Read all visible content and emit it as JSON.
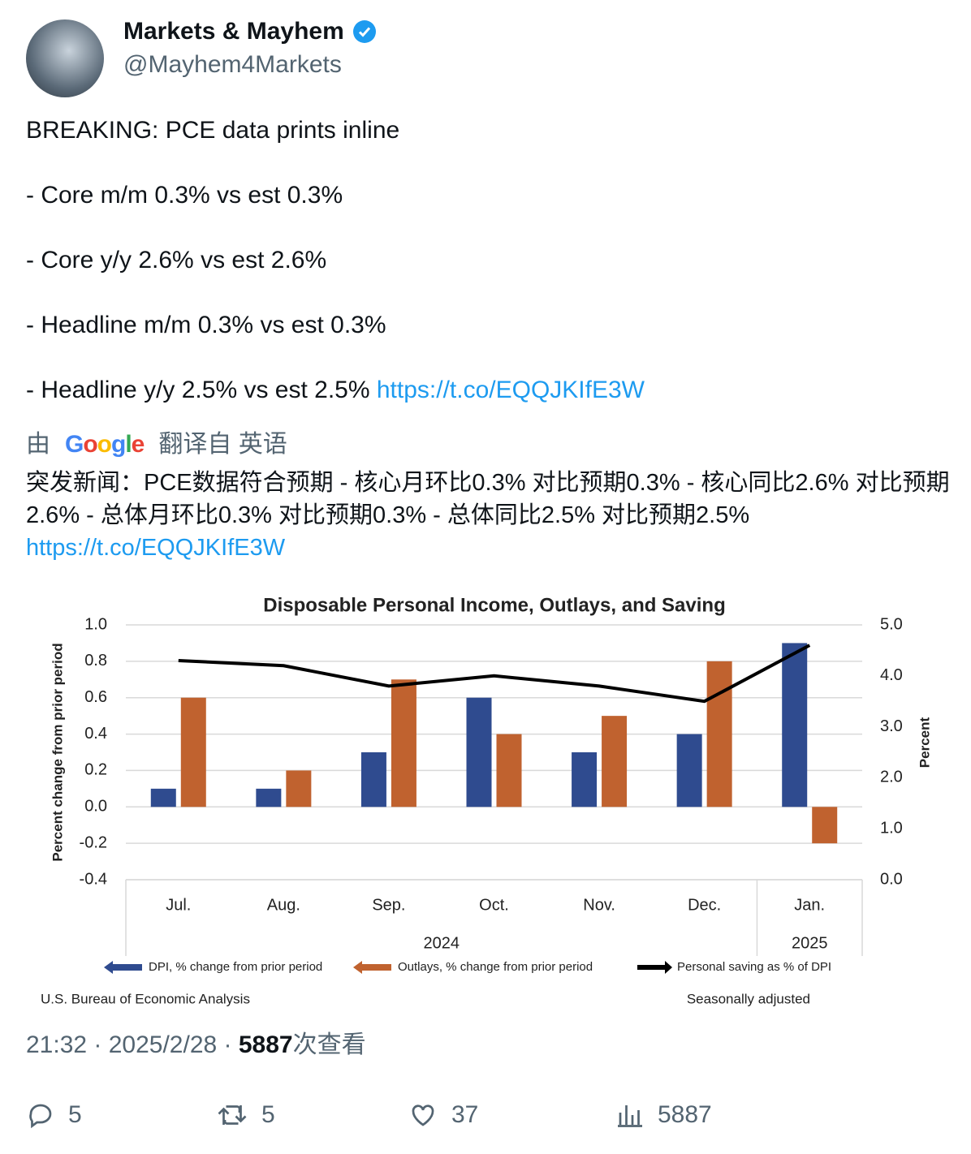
{
  "author": {
    "name": "Markets & Mayhem",
    "handle": "@Mayhem4Markets"
  },
  "tweet": {
    "lines": [
      "BREAKING: PCE data prints inline",
      "- Core m/m 0.3% vs est 0.3%",
      "- Core y/y 2.6% vs est 2.6%",
      "- Headline m/m 0.3% vs est 0.3%",
      "- Headline y/y 2.5% vs est 2.5%"
    ],
    "link": "https://t.co/EQQJKIfE3W"
  },
  "translation": {
    "by": "由",
    "provider": "Google",
    "from": "翻译自 英语",
    "text": "突发新闻：PCE数据符合预期 - 核心月环比0.3% 对比预期0.3% - 核心同比2.6% 对比预期2.6% - 总体月环比0.3% 对比预期0.3% - 总体同比2.5% 对比预期2.5%",
    "link": "https://t.co/EQQJKIfE3W"
  },
  "chart_data": {
    "type": "bar",
    "title": "Disposable Personal Income, Outlays, and Saving",
    "categories": [
      "Jul.",
      "Aug.",
      "Sep.",
      "Oct.",
      "Nov.",
      "Dec.",
      "Jan."
    ],
    "x_groups": [
      "2024",
      "2025"
    ],
    "series": [
      {
        "name": "DPI, % change from prior period",
        "color": "#2f4b8f",
        "values": [
          0.1,
          0.1,
          0.3,
          0.6,
          0.3,
          0.4,
          0.9
        ]
      },
      {
        "name": "Outlays, % change from prior period",
        "color": "#c0622f",
        "values": [
          0.6,
          0.2,
          0.7,
          0.4,
          0.5,
          0.8,
          -0.2
        ]
      },
      {
        "name": "Personal saving as % of DPI",
        "color": "#000000",
        "type": "line",
        "axis": "y2",
        "values": [
          4.3,
          4.2,
          3.8,
          4.0,
          3.8,
          3.5,
          4.6
        ]
      }
    ],
    "ylabel": "Percent change from prior period",
    "y2label": "Percent",
    "ylim": [
      -0.4,
      1.0
    ],
    "yticks": [
      -0.4,
      -0.2,
      {
        "value": 0,
        "label": "0.0"
      },
      0.2,
      0.4,
      0.6,
      0.8,
      {
        "value": 1,
        "label": "1.0"
      }
    ],
    "y2lim": [
      0,
      5
    ],
    "y2ticks": [
      {
        "value": 0,
        "label": "0.0"
      },
      {
        "value": 1,
        "label": "1.0"
      },
      {
        "value": 2,
        "label": "2.0"
      },
      {
        "value": 3,
        "label": "3.0"
      },
      {
        "value": 4,
        "label": "4.0"
      },
      {
        "value": 5,
        "label": "5.0"
      }
    ],
    "grid": true,
    "source": "U.S. Bureau of Economic Analysis",
    "note": "Seasonally adjusted"
  },
  "footer": {
    "meta": "21:32 · 2025/2/28 · ",
    "views": "5887",
    "views_label": "次查看"
  },
  "actions": {
    "replies": 5,
    "reposts": 5,
    "likes": 37,
    "views": 5887
  }
}
